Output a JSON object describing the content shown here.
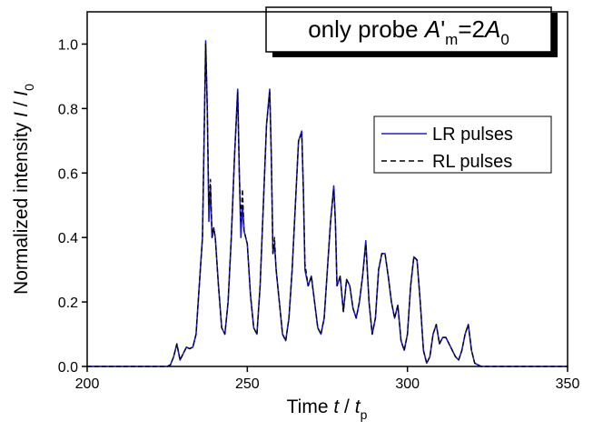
{
  "chart_data": {
    "type": "line",
    "title": {
      "parts": [
        "only probe ",
        "A",
        "'",
        "m",
        "=2",
        "A",
        "0"
      ]
    },
    "x_label": {
      "parts": [
        "Time ",
        "t",
        " / ",
        "t",
        "p"
      ]
    },
    "y_label": {
      "parts": [
        "Normalized intensity ",
        "I",
        " / ",
        "I",
        "0"
      ]
    },
    "xlim": [
      200,
      350
    ],
    "ylim": [
      0,
      1.1
    ],
    "xticks": [
      200,
      250,
      300,
      350
    ],
    "yticks": [
      {
        "value": 0,
        "label": "0.0"
      },
      {
        "value": 0.2,
        "label": "0.2"
      },
      {
        "value": 0.4,
        "label": "0.4"
      },
      {
        "value": 0.6,
        "label": "0.6"
      },
      {
        "value": 0.8,
        "label": "0.8"
      },
      {
        "value": 1.0,
        "label": "1.0"
      }
    ],
    "legend": "upper right",
    "x": [
      200,
      225,
      226,
      227,
      228,
      229,
      230,
      231,
      232,
      233,
      234,
      235,
      236,
      236.5,
      237,
      237.5,
      238,
      238.5,
      239,
      239.5,
      240,
      241,
      242,
      243,
      244,
      245,
      246,
      247,
      247.5,
      248,
      248.5,
      249,
      249.5,
      250,
      251,
      252,
      253,
      254,
      255,
      256,
      257,
      257.5,
      258,
      258.5,
      259,
      260,
      261,
      262,
      263,
      264,
      265,
      266,
      267,
      267.5,
      268,
      269,
      270,
      271,
      272,
      273,
      274,
      275,
      276,
      277,
      277.5,
      278,
      279,
      280,
      281,
      282,
      283,
      284,
      285,
      286,
      287,
      288,
      289,
      290,
      291,
      292,
      293,
      294,
      295,
      296,
      297,
      298,
      299,
      300,
      301,
      302,
      303,
      304,
      305,
      306,
      307,
      308,
      309,
      310,
      311,
      312,
      313,
      314,
      315,
      316,
      317,
      318,
      319,
      320,
      321,
      322,
      323,
      324,
      325,
      350
    ],
    "series": [
      {
        "name": "LR pulses",
        "color": "#1f1fd6",
        "style": "solid",
        "values": [
          0,
          0,
          0.005,
          0.03,
          0.07,
          0.02,
          0.04,
          0.06,
          0.055,
          0.06,
          0.1,
          0.25,
          0.4,
          0.7,
          1.01,
          0.8,
          0.45,
          0.55,
          0.4,
          0.43,
          0.4,
          0.25,
          0.12,
          0.1,
          0.2,
          0.4,
          0.65,
          0.86,
          0.6,
          0.4,
          0.5,
          0.42,
          0.4,
          0.38,
          0.22,
          0.12,
          0.1,
          0.25,
          0.5,
          0.75,
          0.86,
          0.65,
          0.35,
          0.38,
          0.3,
          0.2,
          0.1,
          0.08,
          0.15,
          0.3,
          0.5,
          0.7,
          0.73,
          0.55,
          0.3,
          0.25,
          0.28,
          0.2,
          0.12,
          0.1,
          0.15,
          0.3,
          0.45,
          0.56,
          0.45,
          0.25,
          0.28,
          0.17,
          0.27,
          0.25,
          0.18,
          0.15,
          0.2,
          0.28,
          0.39,
          0.2,
          0.1,
          0.15,
          0.3,
          0.35,
          0.35,
          0.28,
          0.2,
          0.15,
          0.19,
          0.08,
          0.05,
          0.1,
          0.25,
          0.34,
          0.33,
          0.2,
          0.05,
          0.01,
          0.03,
          0.1,
          0.13,
          0.07,
          0.09,
          0.09,
          0.07,
          0.05,
          0.03,
          0.02,
          0.05,
          0.1,
          0.13,
          0.05,
          0.01,
          0.005,
          0,
          0,
          0,
          0
        ]
      },
      {
        "name": "RL pulses",
        "color": "#000000",
        "style": "dashed",
        "values": [
          0,
          0,
          0.005,
          0.03,
          0.07,
          0.02,
          0.04,
          0.06,
          0.055,
          0.06,
          0.1,
          0.25,
          0.4,
          0.7,
          1.0,
          0.8,
          0.5,
          0.58,
          0.4,
          0.43,
          0.4,
          0.25,
          0.12,
          0.1,
          0.2,
          0.4,
          0.65,
          0.85,
          0.6,
          0.45,
          0.55,
          0.42,
          0.4,
          0.38,
          0.22,
          0.12,
          0.1,
          0.25,
          0.5,
          0.75,
          0.85,
          0.65,
          0.35,
          0.4,
          0.3,
          0.2,
          0.1,
          0.08,
          0.15,
          0.3,
          0.5,
          0.7,
          0.72,
          0.55,
          0.32,
          0.25,
          0.28,
          0.2,
          0.12,
          0.1,
          0.15,
          0.3,
          0.45,
          0.55,
          0.45,
          0.25,
          0.28,
          0.17,
          0.27,
          0.25,
          0.18,
          0.15,
          0.2,
          0.28,
          0.38,
          0.2,
          0.1,
          0.15,
          0.3,
          0.35,
          0.35,
          0.28,
          0.2,
          0.15,
          0.19,
          0.08,
          0.05,
          0.1,
          0.25,
          0.34,
          0.33,
          0.2,
          0.05,
          0.01,
          0.03,
          0.1,
          0.13,
          0.07,
          0.09,
          0.09,
          0.07,
          0.05,
          0.03,
          0.02,
          0.05,
          0.1,
          0.13,
          0.05,
          0.01,
          0.005,
          0,
          0,
          0,
          0
        ]
      }
    ]
  }
}
